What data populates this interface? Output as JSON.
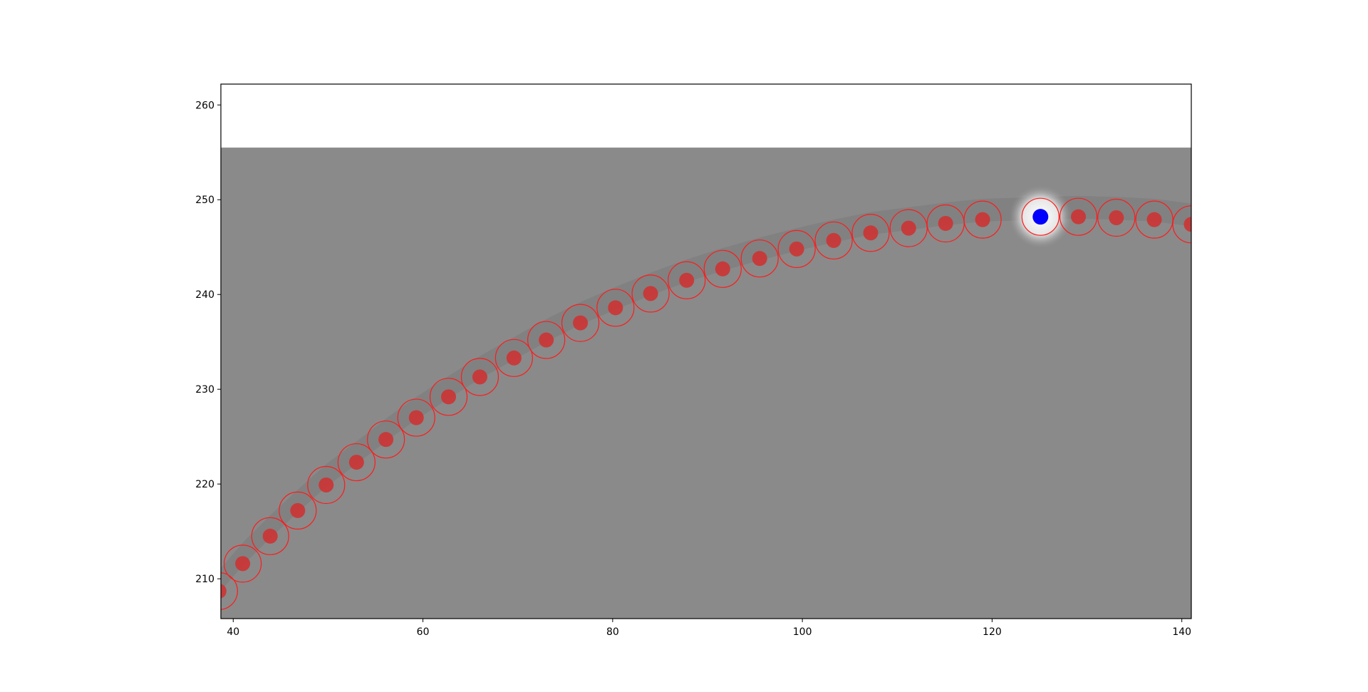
{
  "chart_data": {
    "type": "scatter",
    "title": "",
    "xlabel": "",
    "ylabel": "",
    "xlim": [
      38.7,
      141.0
    ],
    "ylim": [
      205.8,
      262.2
    ],
    "image_extent_y_top": 255.5,
    "xticks": [
      40,
      60,
      80,
      100,
      120,
      140
    ],
    "yticks": [
      210,
      220,
      230,
      240,
      250,
      260
    ],
    "xtick_labels": [
      "40",
      "60",
      "80",
      "100",
      "120",
      "140"
    ],
    "ytick_labels": [
      "210",
      "220",
      "230",
      "240",
      "250",
      "260"
    ],
    "grid": false,
    "legend": "none",
    "background_color": "#8a8a8a",
    "point_color": "#cc3333",
    "ring_color": "#ff1a1a",
    "highlight_color": "#0000ff",
    "series": [
      {
        "x": [
          38.5,
          41.0,
          43.9,
          46.8,
          49.8,
          53.0,
          56.1,
          59.3,
          62.7,
          66.0,
          69.6,
          73.0,
          76.6,
          80.3,
          84.0,
          87.8,
          91.6,
          95.5,
          99.4,
          103.3,
          107.2,
          111.2,
          115.1,
          119.0,
          129.1,
          133.1,
          137.1,
          141.0
        ],
        "y": [
          208.7,
          211.6,
          214.5,
          217.2,
          219.9,
          222.3,
          224.7,
          227.0,
          229.2,
          231.3,
          233.3,
          235.2,
          237.0,
          238.6,
          240.1,
          241.5,
          242.7,
          243.8,
          244.8,
          245.7,
          246.5,
          247.0,
          247.5,
          247.9,
          248.2,
          248.1,
          247.9,
          247.4
        ]
      }
    ],
    "highlight_point": {
      "x": 125.1,
      "y": 248.2
    }
  }
}
